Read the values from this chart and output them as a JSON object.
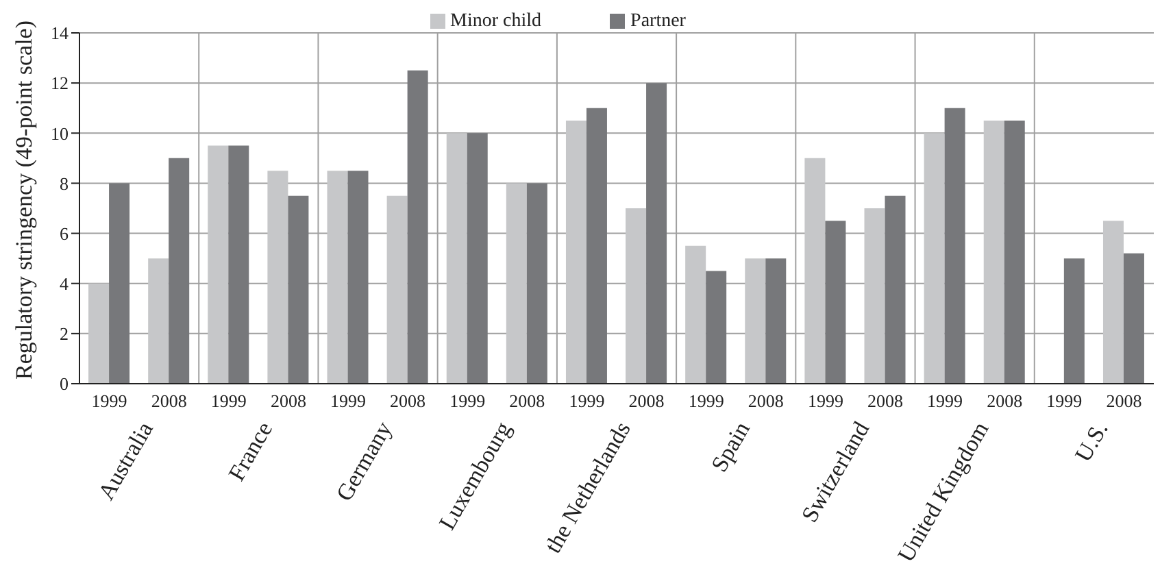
{
  "chart_data": {
    "type": "bar",
    "ylabel": "Regulatory stringency (49-point scale)",
    "categories": [
      "1999",
      "2008",
      "1999",
      "2008",
      "1999",
      "2008",
      "1999",
      "2008",
      "1999",
      "2008",
      "1999",
      "2008",
      "1999",
      "2008",
      "1999",
      "2008",
      "1999",
      "2008"
    ],
    "annotations": [
      "Australia",
      "France",
      "Germany",
      "Luxembourg",
      "the Netherlands",
      "Spain",
      "Switzerland",
      "United Kingdom",
      "U.S."
    ],
    "series": [
      {
        "name": "Minor child",
        "color": "#c6c7c9",
        "values": [
          4,
          5,
          9.5,
          8.5,
          8.5,
          7.5,
          10,
          8,
          10.5,
          7,
          5.5,
          5,
          9,
          7,
          10,
          10.5,
          null,
          6.5
        ]
      },
      {
        "name": "Partner",
        "color": "#77787b",
        "values": [
          8,
          9,
          9.5,
          7.5,
          8.5,
          12.5,
          10,
          8,
          11,
          12,
          4.5,
          5,
          6.5,
          7.5,
          11,
          10.5,
          5,
          5.2
        ]
      }
    ],
    "ylim": [
      0,
      14
    ],
    "yticks": [
      0,
      2,
      4,
      6,
      8,
      10,
      12,
      14
    ],
    "grid": true,
    "legend": "top"
  }
}
